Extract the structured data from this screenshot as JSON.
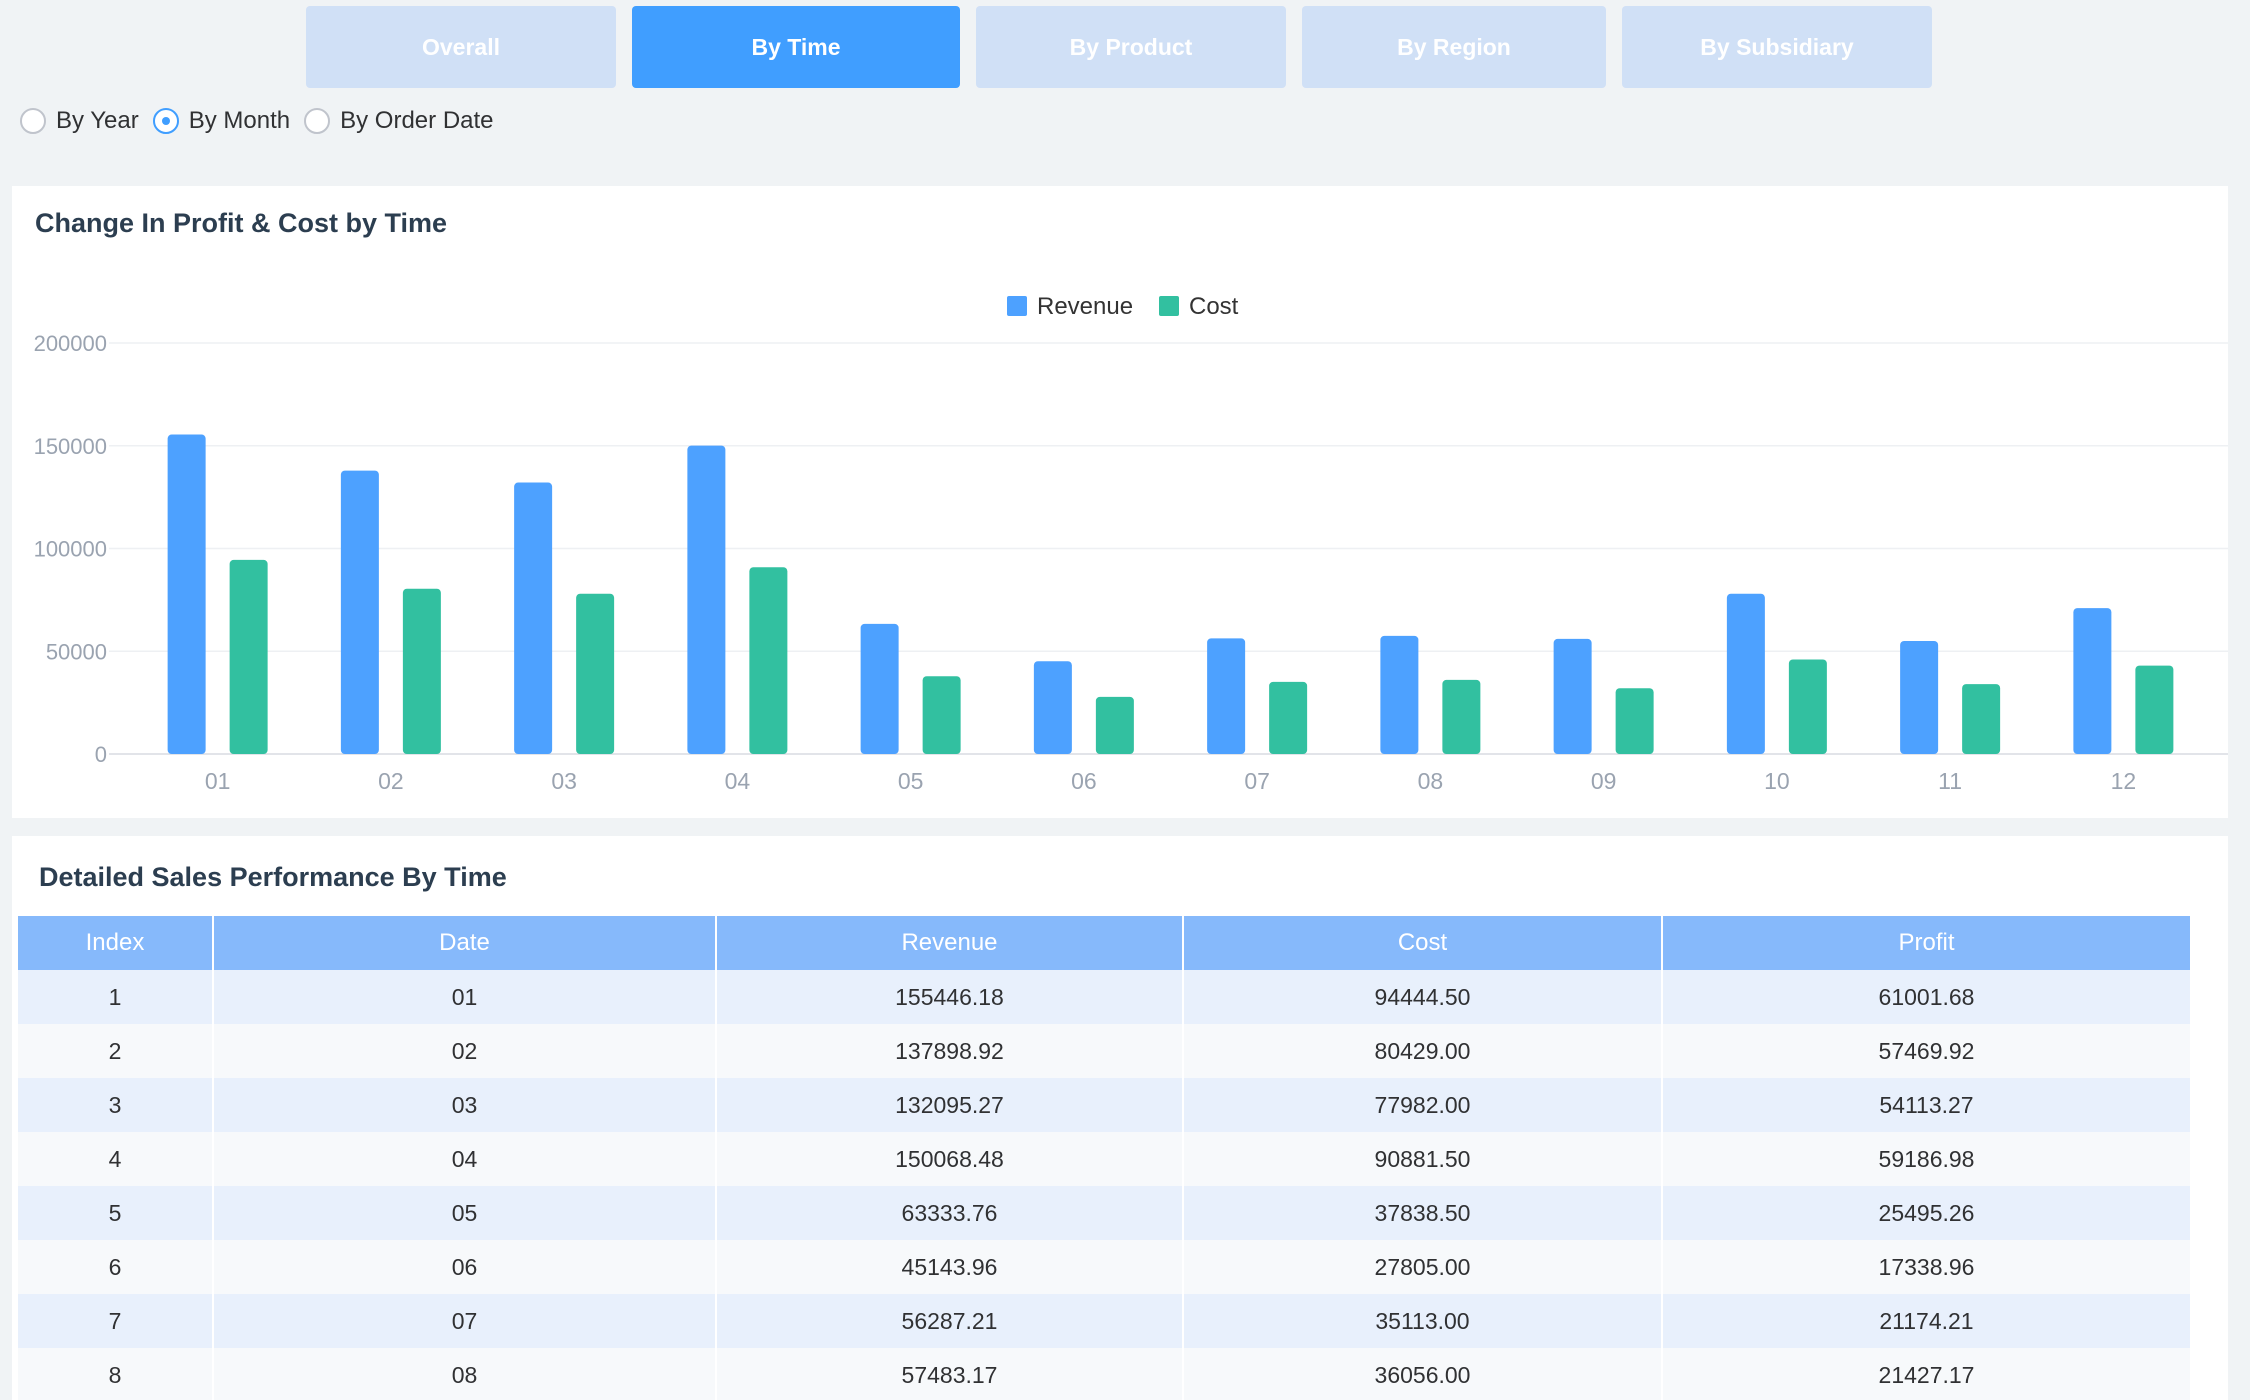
{
  "tabs": [
    {
      "label": "Overall",
      "active": false
    },
    {
      "label": "By Time",
      "active": true
    },
    {
      "label": "By Product",
      "active": false
    },
    {
      "label": "By Region",
      "active": false
    },
    {
      "label": "By Subsidiary",
      "active": false
    }
  ],
  "radios": [
    {
      "label": "By Year",
      "checked": false
    },
    {
      "label": "By Month",
      "checked": true
    },
    {
      "label": "By Order Date",
      "checked": false
    }
  ],
  "chart_card": {
    "title": "Change In Profit & Cost by Time"
  },
  "chart_data": {
    "type": "bar",
    "title": "Change In Profit & Cost by Time",
    "categories": [
      "01",
      "02",
      "03",
      "04",
      "05",
      "06",
      "07",
      "08",
      "09",
      "10",
      "11",
      "12"
    ],
    "series": [
      {
        "name": "Revenue",
        "color": "#4da1ff",
        "values": [
          155446.18,
          137898.92,
          132095.27,
          150068.48,
          63333.76,
          45143.96,
          56287.21,
          57483.17,
          56000,
          78000,
          55000,
          71000
        ]
      },
      {
        "name": "Cost",
        "color": "#32c0a0",
        "values": [
          94444.5,
          80429.0,
          77982.0,
          90881.5,
          37838.5,
          27805.0,
          35113.0,
          36056.0,
          32000,
          46000,
          34000,
          43000
        ]
      }
    ],
    "ylim": [
      0,
      200000
    ],
    "yticks": [
      "0",
      "50000",
      "100000",
      "150000",
      "200000"
    ],
    "legend": "top-center",
    "grid": true
  },
  "table_card": {
    "title": "Detailed Sales Performance By Time",
    "columns": [
      "Index",
      "Date",
      "Revenue",
      "Cost",
      "Profit"
    ],
    "rows": [
      [
        "1",
        "01",
        "155446.18",
        "94444.50",
        "61001.68"
      ],
      [
        "2",
        "02",
        "137898.92",
        "80429.00",
        "57469.92"
      ],
      [
        "3",
        "03",
        "132095.27",
        "77982.00",
        "54113.27"
      ],
      [
        "4",
        "04",
        "150068.48",
        "90881.50",
        "59186.98"
      ],
      [
        "5",
        "05",
        "63333.76",
        "37838.50",
        "25495.26"
      ],
      [
        "6",
        "06",
        "45143.96",
        "27805.00",
        "17338.96"
      ],
      [
        "7",
        "07",
        "56287.21",
        "35113.00",
        "21174.21"
      ],
      [
        "8",
        "08",
        "57483.17",
        "36056.00",
        "21427.17"
      ]
    ]
  }
}
